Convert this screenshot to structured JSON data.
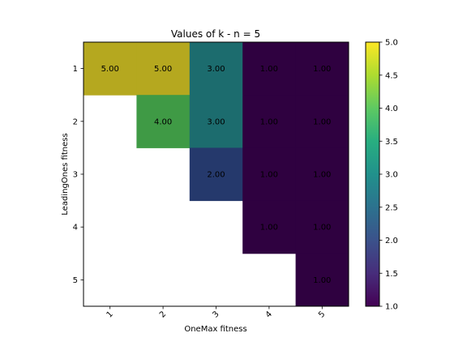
{
  "chart_data": {
    "type": "heatmap",
    "title": "Values of k - n = 5",
    "xlabel": "OneMax fitness",
    "ylabel": "LeadingOnes fitness",
    "x_categories": [
      "1",
      "2",
      "3",
      "4",
      "5"
    ],
    "y_categories": [
      "1",
      "2",
      "3",
      "4",
      "5"
    ],
    "cells": [
      [
        5.0,
        5.0,
        3.0,
        1.0,
        1.0
      ],
      [
        null,
        4.0,
        3.0,
        1.0,
        1.0
      ],
      [
        null,
        null,
        2.0,
        1.0,
        1.0
      ],
      [
        null,
        null,
        null,
        1.0,
        1.0
      ],
      [
        null,
        null,
        null,
        null,
        1.0
      ]
    ],
    "cell_labels": [
      [
        "5.00",
        "5.00",
        "3.00",
        "1.00",
        "1.00"
      ],
      [
        "",
        "4.00",
        "3.00",
        "1.00",
        "1.00"
      ],
      [
        "",
        "",
        "2.00",
        "1.00",
        "1.00"
      ],
      [
        "",
        "",
        "",
        "1.00",
        "1.00"
      ],
      [
        "",
        "",
        "",
        "",
        "1.00"
      ]
    ],
    "colormap": "viridis",
    "colorbar": {
      "range": [
        1.0,
        5.0
      ],
      "ticks": [
        "1.0",
        "1.5",
        "2.0",
        "2.5",
        "3.0",
        "3.5",
        "4.0",
        "4.5",
        "5.0"
      ]
    },
    "colors": {
      "5.00": "#b5a81f",
      "4.00": "#3f9a45",
      "3.00": "#1c6c6e",
      "2.00": "#25396c",
      "1.00": "#2f0140"
    }
  }
}
